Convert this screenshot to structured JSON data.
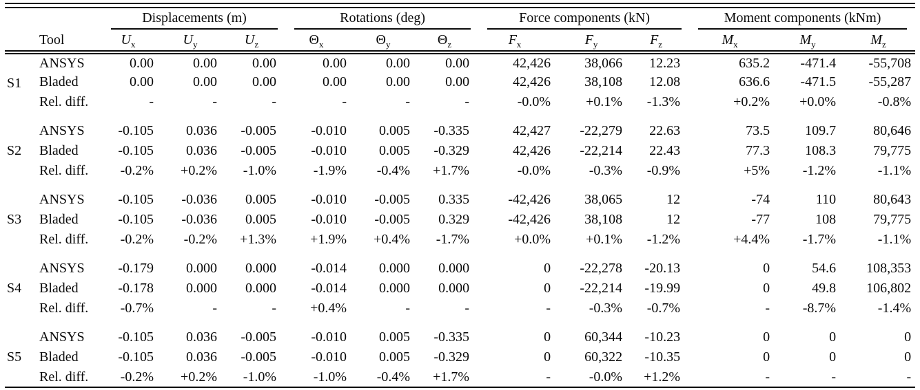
{
  "table": {
    "tool_header": "Tool",
    "groups": [
      {
        "label": "Displacements (m)"
      },
      {
        "label": "Rotations (deg)"
      },
      {
        "label": "Force components (kN)"
      },
      {
        "label": "Moment components (kNm)"
      }
    ],
    "columns": [
      {
        "base": "U",
        "sub": "x"
      },
      {
        "base": "U",
        "sub": "y"
      },
      {
        "base": "U",
        "sub": "z"
      },
      {
        "base": "Θ",
        "sub": "x"
      },
      {
        "base": "Θ",
        "sub": "y"
      },
      {
        "base": "Θ",
        "sub": "z"
      },
      {
        "base": "F",
        "sub": "x"
      },
      {
        "base": "F",
        "sub": "y"
      },
      {
        "base": "F",
        "sub": "z"
      },
      {
        "base": "M",
        "sub": "x"
      },
      {
        "base": "M",
        "sub": "y"
      },
      {
        "base": "M",
        "sub": "z"
      }
    ],
    "blocks": [
      {
        "id": "S1",
        "rows": [
          {
            "tool": "ANSYS",
            "values": [
              "0.00",
              "0.00",
              "0.00",
              "0.00",
              "0.00",
              "0.00",
              "42,426",
              "38,066",
              "12.23",
              "635.2",
              "-471.4",
              "-55,708"
            ]
          },
          {
            "tool": "Bladed",
            "values": [
              "0.00",
              "0.00",
              "0.00",
              "0.00",
              "0.00",
              "0.00",
              "42,426",
              "38,108",
              "12.08",
              "636.6",
              "-471.5",
              "-55,287"
            ]
          },
          {
            "tool": "Rel. diff.",
            "values": [
              "-",
              "-",
              "-",
              "-",
              "-",
              "-",
              "-0.0%",
              "+0.1%",
              "-1.3%",
              "+0.2%",
              "+0.0%",
              "-0.8%"
            ]
          }
        ]
      },
      {
        "id": "S2",
        "rows": [
          {
            "tool": "ANSYS",
            "values": [
              "-0.105",
              "0.036",
              "-0.005",
              "-0.010",
              "0.005",
              "-0.335",
              "42,427",
              "-22,279",
              "22.63",
              "73.5",
              "109.7",
              "80,646"
            ]
          },
          {
            "tool": "Bladed",
            "values": [
              "-0.105",
              "0.036",
              "-0.005",
              "-0.010",
              "0.005",
              "-0.329",
              "42,426",
              "-22,214",
              "22.43",
              "77.3",
              "108.3",
              "79,775"
            ]
          },
          {
            "tool": "Rel. diff.",
            "values": [
              "-0.2%",
              "+0.2%",
              "-1.0%",
              "-1.9%",
              "-0.4%",
              "+1.7%",
              "-0.0%",
              "-0.3%",
              "-0.9%",
              "+5%",
              "-1.2%",
              "-1.1%"
            ]
          }
        ]
      },
      {
        "id": "S3",
        "rows": [
          {
            "tool": "ANSYS",
            "values": [
              "-0.105",
              "-0.036",
              "0.005",
              "-0.010",
              "-0.005",
              "0.335",
              "-42,426",
              "38,065",
              "12",
              "-74",
              "110",
              "80,643"
            ]
          },
          {
            "tool": "Bladed",
            "values": [
              "-0.105",
              "-0.036",
              "0.005",
              "-0.010",
              "-0.005",
              "0.329",
              "-42,426",
              "38,108",
              "12",
              "-77",
              "108",
              "79,775"
            ]
          },
          {
            "tool": "Rel. diff.",
            "values": [
              "-0.2%",
              "-0.2%",
              "+1.3%",
              "+1.9%",
              "+0.4%",
              "-1.7%",
              "+0.0%",
              "+0.1%",
              "-1.2%",
              "+4.4%",
              "-1.7%",
              "-1.1%"
            ]
          }
        ]
      },
      {
        "id": "S4",
        "rows": [
          {
            "tool": "ANSYS",
            "values": [
              "-0.179",
              "0.000",
              "0.000",
              "-0.014",
              "0.000",
              "0.000",
              "0",
              "-22,278",
              "-20.13",
              "0",
              "54.6",
              "108,353"
            ]
          },
          {
            "tool": "Bladed",
            "values": [
              "-0.178",
              "0.000",
              "0.000",
              "-0.014",
              "0.000",
              "0.000",
              "0",
              "-22,214",
              "-19.99",
              "0",
              "49.8",
              "106,802"
            ]
          },
          {
            "tool": "Rel. diff.",
            "values": [
              "-0.7%",
              "-",
              "-",
              "+0.4%",
              "-",
              "-",
              "-",
              "-0.3%",
              "-0.7%",
              "-",
              "-8.7%",
              "-1.4%"
            ]
          }
        ]
      },
      {
        "id": "S5",
        "rows": [
          {
            "tool": "ANSYS",
            "values": [
              "-0.105",
              "0.036",
              "-0.005",
              "-0.010",
              "0.005",
              "-0.335",
              "0",
              "60,344",
              "-10.23",
              "0",
              "0",
              "0"
            ]
          },
          {
            "tool": "Bladed",
            "values": [
              "-0.105",
              "0.036",
              "-0.005",
              "-0.010",
              "0.005",
              "-0.329",
              "0",
              "60,322",
              "-10.35",
              "0",
              "0",
              "0"
            ]
          },
          {
            "tool": "Rel. diff.",
            "values": [
              "-0.2%",
              "+0.2%",
              "-1.0%",
              "-1.0%",
              "-0.4%",
              "+1.7%",
              "-",
              "-0.0%",
              "+1.2%",
              "-",
              "-",
              "-"
            ]
          }
        ]
      }
    ]
  }
}
